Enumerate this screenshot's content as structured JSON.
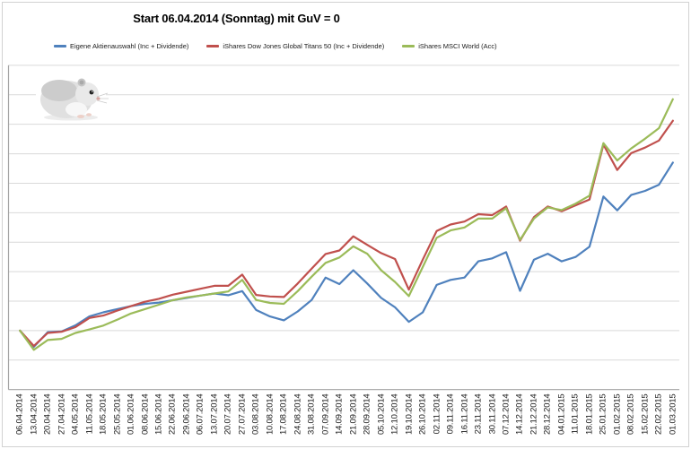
{
  "figure": {
    "background": "#ffffff",
    "border_color": "#d2d2d2",
    "gridline_color": "#d9d9d9",
    "axis_color": "#a3a3a3",
    "label_color": "#1a1a1a"
  },
  "chart_data": {
    "type": "line",
    "title": "Start 06.04.2014 (Sonntag) mit GuV = 0",
    "legend_position": "top",
    "grid": true,
    "x_axis": {
      "label_rotation_deg": 90,
      "labels": [
        "06.04.2014",
        "13.04.2014",
        "20.04.2014",
        "27.04.2014",
        "04.05.2014",
        "11.05.2014",
        "18.05.2014",
        "25.05.2014",
        "01.06.2014",
        "08.06.2014",
        "15.06.2014",
        "22.06.2014",
        "29.06.2014",
        "06.07.2014",
        "13.07.2014",
        "20.07.2014",
        "27.07.2014",
        "03.08.2014",
        "10.08.2014",
        "17.08.2014",
        "24.08.2014",
        "31.08.2014",
        "07.09.2014",
        "14.09.2014",
        "21.09.2014",
        "28.09.2014",
        "05.10.2014",
        "12.10.2014",
        "19.10.2014",
        "26.10.2014",
        "02.11.2014",
        "09.11.2014",
        "16.11.2014",
        "23.11.2014",
        "30.11.2014",
        "07.12.2014",
        "14.12.2014",
        "21.12.2014",
        "28.12.2014",
        "04.01.2015",
        "11.01.2015",
        "18.01.2015",
        "25.01.2015",
        "01.02.2015",
        "08.02.2015",
        "15.02.2015",
        "22.02.2015",
        "01.03.2015"
      ]
    },
    "y_axis": {
      "labels_visible": false,
      "min": -2,
      "max": 9,
      "gridline_step": 1,
      "baseline_value": 0
    },
    "series": [
      {
        "name": "Eigene Aktienauswahl (Inc + Dividende)",
        "color": "#4F81BD",
        "values": [
          0,
          -0.55,
          -0.05,
          -0.03,
          0.18,
          0.48,
          0.62,
          0.73,
          0.83,
          0.91,
          0.95,
          1.03,
          1.11,
          1.19,
          1.26,
          1.2,
          1.34,
          0.7,
          0.48,
          0.35,
          0.65,
          1.04,
          1.8,
          1.58,
          2.05,
          1.6,
          1.11,
          0.79,
          0.3,
          0.62,
          1.55,
          1.72,
          1.8,
          2.35,
          2.45,
          2.66,
          1.35,
          2.41,
          2.61,
          2.35,
          2.5,
          2.85,
          4.55,
          4.08,
          4.6,
          4.74,
          4.95,
          5.7
        ]
      },
      {
        "name": "iShares Dow Jones Global Titans 50 (Inc + Dividende)",
        "color": "#C0504D",
        "values": [
          0,
          -0.52,
          -0.08,
          -0.04,
          0.12,
          0.43,
          0.51,
          0.68,
          0.83,
          0.98,
          1.08,
          1.22,
          1.32,
          1.42,
          1.52,
          1.52,
          1.9,
          1.21,
          1.16,
          1.14,
          1.6,
          2.1,
          2.6,
          2.72,
          3.2,
          2.91,
          2.63,
          2.43,
          1.39,
          2.41,
          3.38,
          3.6,
          3.7,
          3.95,
          3.92,
          4.21,
          3.05,
          3.85,
          4.21,
          4.05,
          4.25,
          4.45,
          6.31,
          5.45,
          6.02,
          6.21,
          6.45,
          7.12
        ]
      },
      {
        "name": "iShares MSCI World (Acc)",
        "color": "#9BBB59",
        "values": [
          0,
          -0.65,
          -0.32,
          -0.28,
          -0.08,
          0.04,
          0.17,
          0.37,
          0.58,
          0.73,
          0.88,
          1.03,
          1.13,
          1.19,
          1.26,
          1.33,
          1.72,
          1.04,
          0.94,
          0.91,
          1.34,
          1.83,
          2.3,
          2.48,
          2.86,
          2.61,
          2.05,
          1.65,
          1.17,
          2.16,
          3.15,
          3.4,
          3.5,
          3.8,
          3.8,
          4.15,
          3.08,
          3.8,
          4.18,
          4.09,
          4.31,
          4.58,
          6.36,
          5.77,
          6.18,
          6.51,
          6.87,
          7.85
        ]
      }
    ]
  },
  "decorations": {
    "hamster_image": "photo of a grey-white dwarf hamster"
  }
}
